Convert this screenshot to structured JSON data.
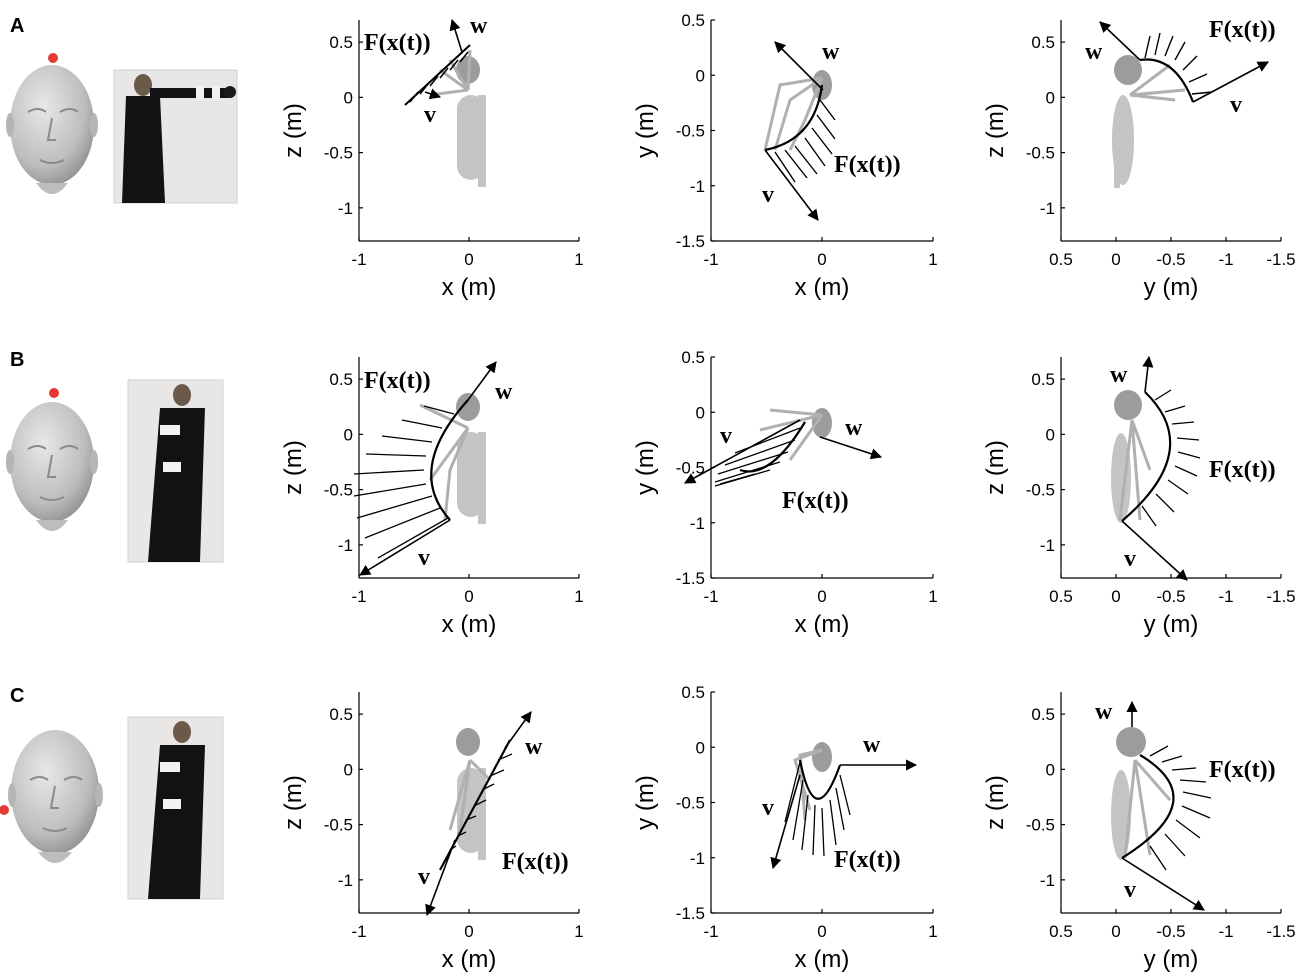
{
  "panels": [
    "A",
    "B",
    "C"
  ],
  "annotations": {
    "field": "F(x(t))",
    "w": "w",
    "v": "v"
  },
  "colors": {
    "body": "#c4c4c4",
    "head": "#9c9c9c",
    "arm": "#b0b0b0",
    "trajectory": "#000000",
    "marker": "#e53935",
    "head_model": "#c9c9c9"
  },
  "rows": [
    {
      "label": "A",
      "marker": "top-of-head",
      "photo_pose": "arm-extended-forward",
      "charts": [
        {
          "type": "line",
          "xlabel": "x (m)",
          "ylabel": "z (m)",
          "xticks": [
            "-1",
            "0",
            "1"
          ],
          "yticks": [
            "0.5",
            "0",
            "-0.5",
            "-1"
          ],
          "xlim": [
            -1,
            1
          ],
          "ylim": [
            -1.3,
            0.7
          ]
        },
        {
          "type": "line",
          "xlabel": "x (m)",
          "ylabel": "y (m)",
          "xticks": [
            "-1",
            "0",
            "1"
          ],
          "yticks": [
            "0.5",
            "0",
            "-0.5",
            "-1",
            "-1.5"
          ],
          "xlim": [
            -1,
            1
          ],
          "ylim": [
            -1.5,
            0.5
          ]
        },
        {
          "type": "line",
          "xlabel": "y (m)",
          "ylabel": "z (m)",
          "xticks": [
            "0.5",
            "0",
            "-0.5",
            "-1",
            "-1.5"
          ],
          "yticks": [
            "0.5",
            "0",
            "-0.5",
            "-1"
          ],
          "xlim": [
            0.5,
            -1.5
          ],
          "ylim": [
            -1.3,
            0.7
          ]
        }
      ]
    },
    {
      "label": "B",
      "marker": "top-of-head",
      "photo_pose": "arm-down-side",
      "charts": [
        {
          "type": "line",
          "xlabel": "x (m)",
          "ylabel": "z (m)",
          "xticks": [
            "-1",
            "0",
            "1"
          ],
          "yticks": [
            "0.5",
            "0",
            "-0.5",
            "-1"
          ],
          "xlim": [
            -1,
            1
          ],
          "ylim": [
            -1.3,
            0.7
          ]
        },
        {
          "type": "line",
          "xlabel": "x (m)",
          "ylabel": "y (m)",
          "xticks": [
            "-1",
            "0",
            "1"
          ],
          "yticks": [
            "0.5",
            "0",
            "-0.5",
            "-1",
            "-1.5"
          ],
          "xlim": [
            -1,
            1
          ],
          "ylim": [
            -1.5,
            0.5
          ]
        },
        {
          "type": "line",
          "xlabel": "y (m)",
          "ylabel": "z (m)",
          "xticks": [
            "0.5",
            "0",
            "-0.5",
            "-1",
            "-1.5"
          ],
          "yticks": [
            "0.5",
            "0",
            "-0.5",
            "-1"
          ],
          "xlim": [
            0.5,
            -1.5
          ],
          "ylim": [
            -1.3,
            0.7
          ]
        }
      ]
    },
    {
      "label": "C",
      "marker": "side-of-head",
      "photo_pose": "arm-down-side",
      "charts": [
        {
          "type": "line",
          "xlabel": "x (m)",
          "ylabel": "z (m)",
          "xticks": [
            "-1",
            "0",
            "1"
          ],
          "yticks": [
            "0.5",
            "0",
            "-0.5",
            "-1"
          ],
          "xlim": [
            -1,
            1
          ],
          "ylim": [
            -1.3,
            0.7
          ]
        },
        {
          "type": "line",
          "xlabel": "x (m)",
          "ylabel": "y (m)",
          "xticks": [
            "-1",
            "0",
            "1"
          ],
          "yticks": [
            "0.5",
            "0",
            "-0.5",
            "-1",
            "-1.5"
          ],
          "xlim": [
            -1,
            1
          ],
          "ylim": [
            -1.5,
            0.5
          ]
        },
        {
          "type": "line",
          "xlabel": "y (m)",
          "ylabel": "z (m)",
          "xticks": [
            "0.5",
            "0",
            "-0.5",
            "-1",
            "-1.5"
          ],
          "yticks": [
            "0.5",
            "0",
            "-0.5",
            "-1"
          ],
          "xlim": [
            0.5,
            -1.5
          ],
          "ylim": [
            -1.3,
            0.7
          ]
        }
      ]
    }
  ]
}
